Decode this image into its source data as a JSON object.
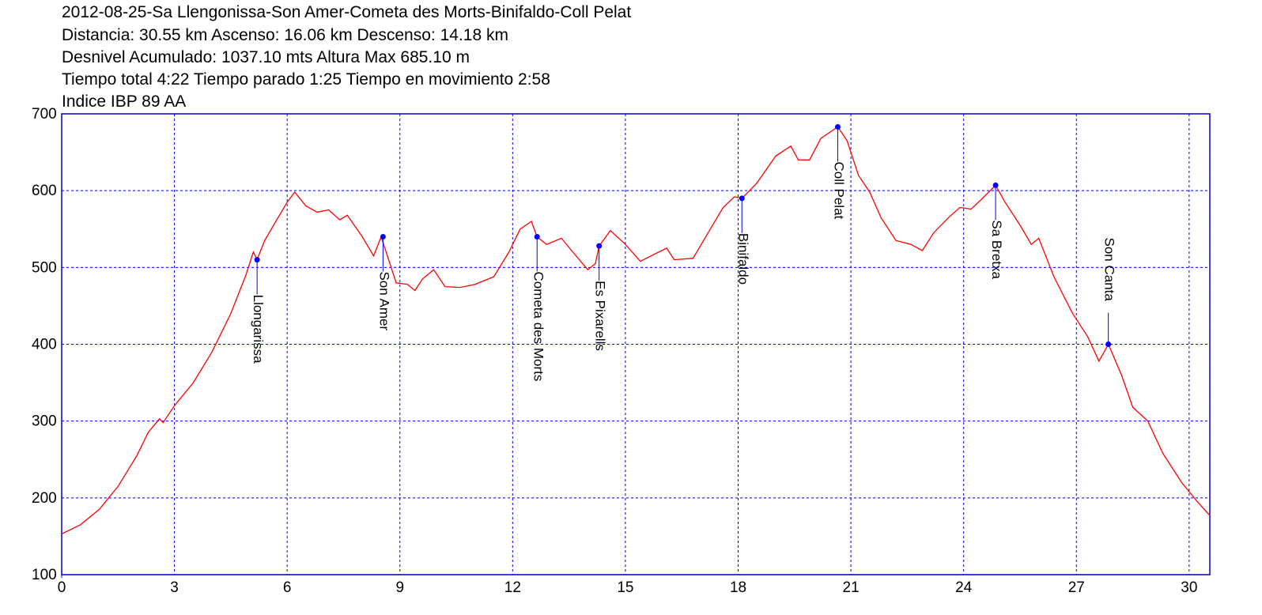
{
  "chart_data": {
    "type": "line",
    "title": "2012-08-25-Sa Llengonissa-Son Amer-Cometa des Morts-Binifaldo-Coll Pelat",
    "subtitle_lines": [
      "Distancia: 30.55 km Ascenso: 16.06 km Descenso: 14.18 km",
      "Desnivel Acumulado: 1037.10 mts  Altura Max 685.10 m",
      "Tiempo total 4:22 Tiempo parado 1:25 Tiempo en movimiento 2:58",
      "Indice IBP 89 AA"
    ],
    "xlim": [
      0,
      30.55
    ],
    "ylim": [
      100,
      700
    ],
    "xticks": [
      0,
      3,
      6,
      9,
      12,
      15,
      18,
      21,
      24,
      27,
      30
    ],
    "yticks": [
      100,
      200,
      300,
      400,
      500,
      600,
      700
    ],
    "grid": true,
    "grid_color": "#0000cc",
    "frame_color": "#0000cc",
    "series": [
      {
        "color": "#ff0000",
        "x": [
          0,
          0.5,
          1,
          1.5,
          2,
          2.3,
          2.6,
          2.7,
          3,
          3.5,
          4,
          4.5,
          4.9,
          5.1,
          5.2,
          5.4,
          5.7,
          6.0,
          6.2,
          6.5,
          6.8,
          7.1,
          7.4,
          7.6,
          8.0,
          8.3,
          8.5,
          8.7,
          8.9,
          9.2,
          9.4,
          9.6,
          9.9,
          10.2,
          10.6,
          11.0,
          11.5,
          11.9,
          12.2,
          12.5,
          12.65,
          12.9,
          13.3,
          13.6,
          14.0,
          14.2,
          14.3,
          14.6,
          15.0,
          15.4,
          15.8,
          16.1,
          16.3,
          16.8,
          17.2,
          17.6,
          17.9,
          18.1,
          18.5,
          19.0,
          19.4,
          19.6,
          19.9,
          20.2,
          20.5,
          20.65,
          20.9,
          21.2,
          21.5,
          21.8,
          22.2,
          22.6,
          22.9,
          23.2,
          23.6,
          23.9,
          24.2,
          24.5,
          24.85,
          25.1,
          25.5,
          25.8,
          26.0,
          26.4,
          26.9,
          27.3,
          27.6,
          27.85,
          28.2,
          28.5,
          28.9,
          29.3,
          29.8,
          30.2,
          30.55
        ],
        "values": [
          153,
          165,
          185,
          215,
          255,
          285,
          303,
          298,
          320,
          350,
          390,
          440,
          490,
          520,
          510,
          535,
          560,
          585,
          598,
          580,
          572,
          575,
          562,
          568,
          540,
          515,
          540,
          510,
          480,
          478,
          470,
          485,
          497,
          475,
          474,
          478,
          488,
          520,
          550,
          560,
          540,
          530,
          538,
          520,
          497,
          505,
          528,
          548,
          530,
          508,
          518,
          525,
          510,
          512,
          545,
          578,
          592,
          590,
          610,
          645,
          658,
          640,
          640,
          668,
          678,
          683,
          665,
          620,
          598,
          565,
          535,
          530,
          522,
          545,
          565,
          578,
          576,
          590,
          607,
          585,
          555,
          530,
          538,
          488,
          440,
          410,
          378,
          400,
          360,
          318,
          300,
          258,
          220,
          196,
          177
        ]
      }
    ],
    "waypoint_color": "#0000ff",
    "waypoints": [
      {
        "name": "Llongarissa",
        "x": 5.2,
        "y": 510
      },
      {
        "name": "Son Amer",
        "x": 8.55,
        "y": 540
      },
      {
        "name": "Cometa des Morts",
        "x": 12.65,
        "y": 540
      },
      {
        "name": "Es Pixarells",
        "x": 14.3,
        "y": 528
      },
      {
        "name": "Binifaldo",
        "x": 18.1,
        "y": 590
      },
      {
        "name": "Coll Pelat",
        "x": 20.65,
        "y": 683
      },
      {
        "name": "Sa Bretxa",
        "x": 24.85,
        "y": 607
      },
      {
        "name": "Son Canta",
        "x": 27.85,
        "y": 400
      }
    ]
  }
}
